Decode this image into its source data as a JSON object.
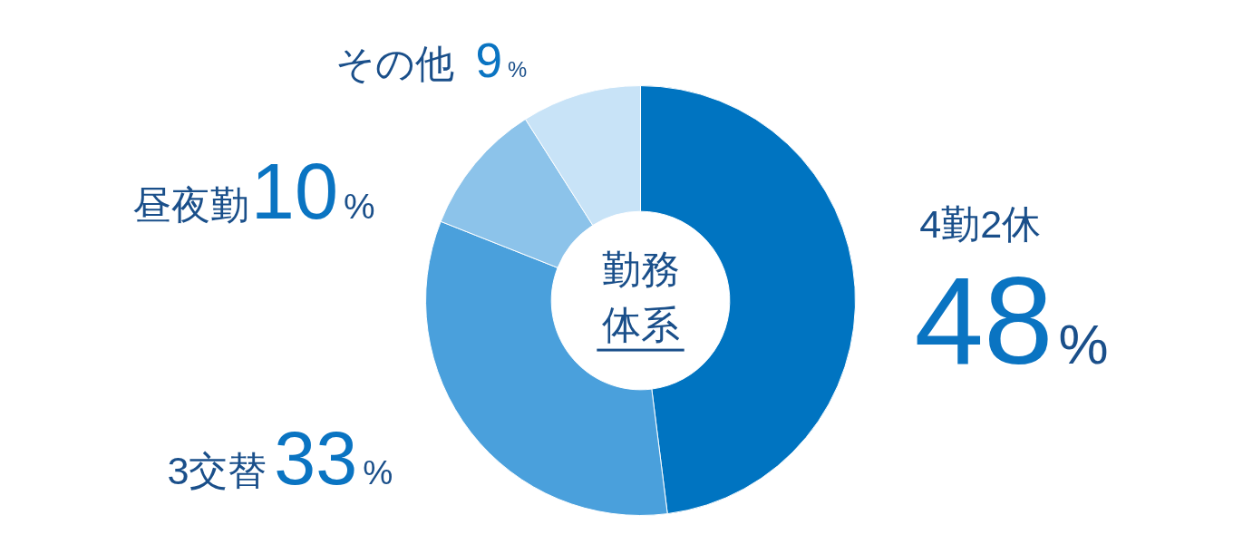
{
  "chart_data": {
    "type": "donut",
    "title": "勤務体系",
    "categories": [
      "4勤2休",
      "3交替",
      "昼夜勤",
      "その他"
    ],
    "values": [
      48,
      33,
      10,
      9
    ],
    "colors": [
      "#0074c1",
      "#4aa0dc",
      "#8cc3ea",
      "#c8e3f7"
    ],
    "value_labels": [
      "48%",
      "33%",
      "10%",
      "9%"
    ]
  }
}
